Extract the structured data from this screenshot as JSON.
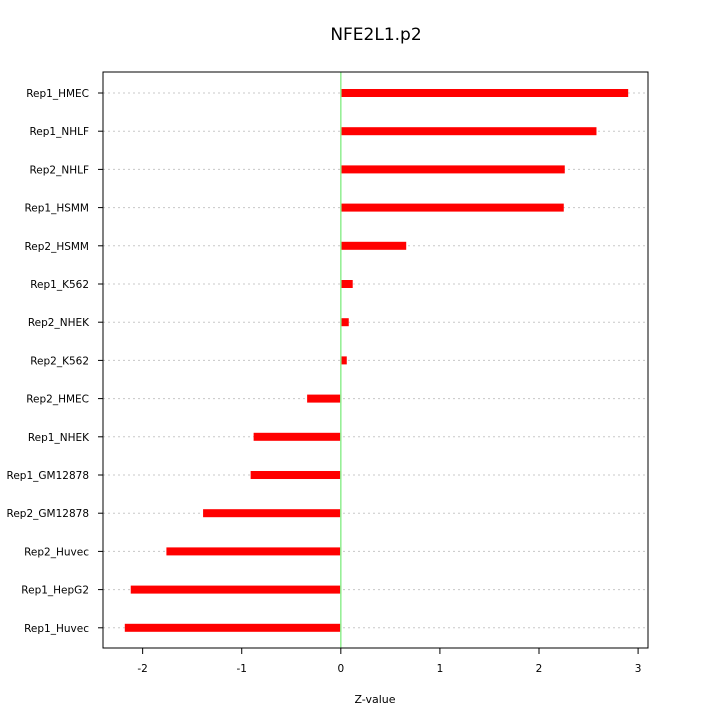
{
  "chart_data": {
    "type": "bar",
    "orientation": "horizontal",
    "title": "NFE2L1.p2",
    "xlabel": "Z-value",
    "ylabel": "",
    "xlim": [
      -2.4,
      3.1
    ],
    "xticks": [
      -2,
      -1,
      0,
      1,
      2,
      3
    ],
    "reference_line": 0,
    "grid": "dotted horizontal",
    "colors": {
      "bar": "#ff0000",
      "reference_line": "#90ee90",
      "grid": "#c8c8c8",
      "frame": "#000000"
    },
    "categories": [
      "Rep1_HMEC",
      "Rep1_NHLF",
      "Rep2_NHLF",
      "Rep1_HSMM",
      "Rep2_HSMM",
      "Rep1_K562",
      "Rep2_NHEK",
      "Rep2_K562",
      "Rep2_HMEC",
      "Rep1_NHEK",
      "Rep1_GM12878",
      "Rep2_GM12878",
      "Rep2_Huvec",
      "Rep1_HepG2",
      "Rep1_Huvec"
    ],
    "values": [
      2.9,
      2.58,
      2.26,
      2.25,
      0.66,
      0.12,
      0.08,
      0.06,
      -0.34,
      -0.88,
      -0.91,
      -1.39,
      -1.76,
      -2.12,
      -2.18
    ]
  }
}
